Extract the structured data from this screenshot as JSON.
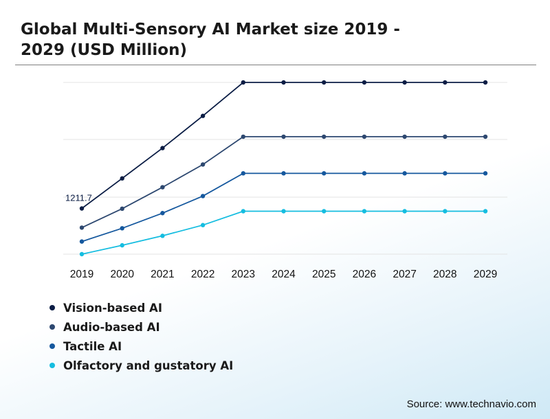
{
  "chart_data": {
    "type": "line",
    "title": "Global Multi-Sensory AI Market size 2019 - 2029 (USD Million)",
    "categories": [
      "2019",
      "2020",
      "2021",
      "2022",
      "2023",
      "2024",
      "2025",
      "2026",
      "2027",
      "2028",
      "2029"
    ],
    "series": [
      {
        "name": "Vision-based AI",
        "color": "#0b1d45",
        "values": [
          1211.7,
          1450,
          1690,
          1945,
          2210,
          2210,
          2210,
          2210,
          2210,
          2210,
          2210
        ]
      },
      {
        "name": "Audio-based AI",
        "color": "#2d4870",
        "values": [
          1060,
          1210,
          1380,
          1560,
          1780,
          1780,
          1780,
          1780,
          1780,
          1780,
          1780
        ]
      },
      {
        "name": "Tactile AI",
        "color": "#15589e",
        "values": [
          950,
          1055,
          1175,
          1310,
          1490,
          1490,
          1490,
          1490,
          1490,
          1490,
          1490
        ]
      },
      {
        "name": "Olfactory and gustatory AI",
        "color": "#15bde0",
        "values": [
          850,
          920,
          995,
          1080,
          1190,
          1190,
          1190,
          1190,
          1190,
          1190,
          1190
        ]
      }
    ],
    "data_labels": [
      {
        "series": 0,
        "index": 0,
        "text": "1211.7"
      }
    ],
    "ylim": [
      850,
      2210
    ],
    "grid": true,
    "legend_position": "bottom-left"
  },
  "source": "Source: www.technavio.com"
}
